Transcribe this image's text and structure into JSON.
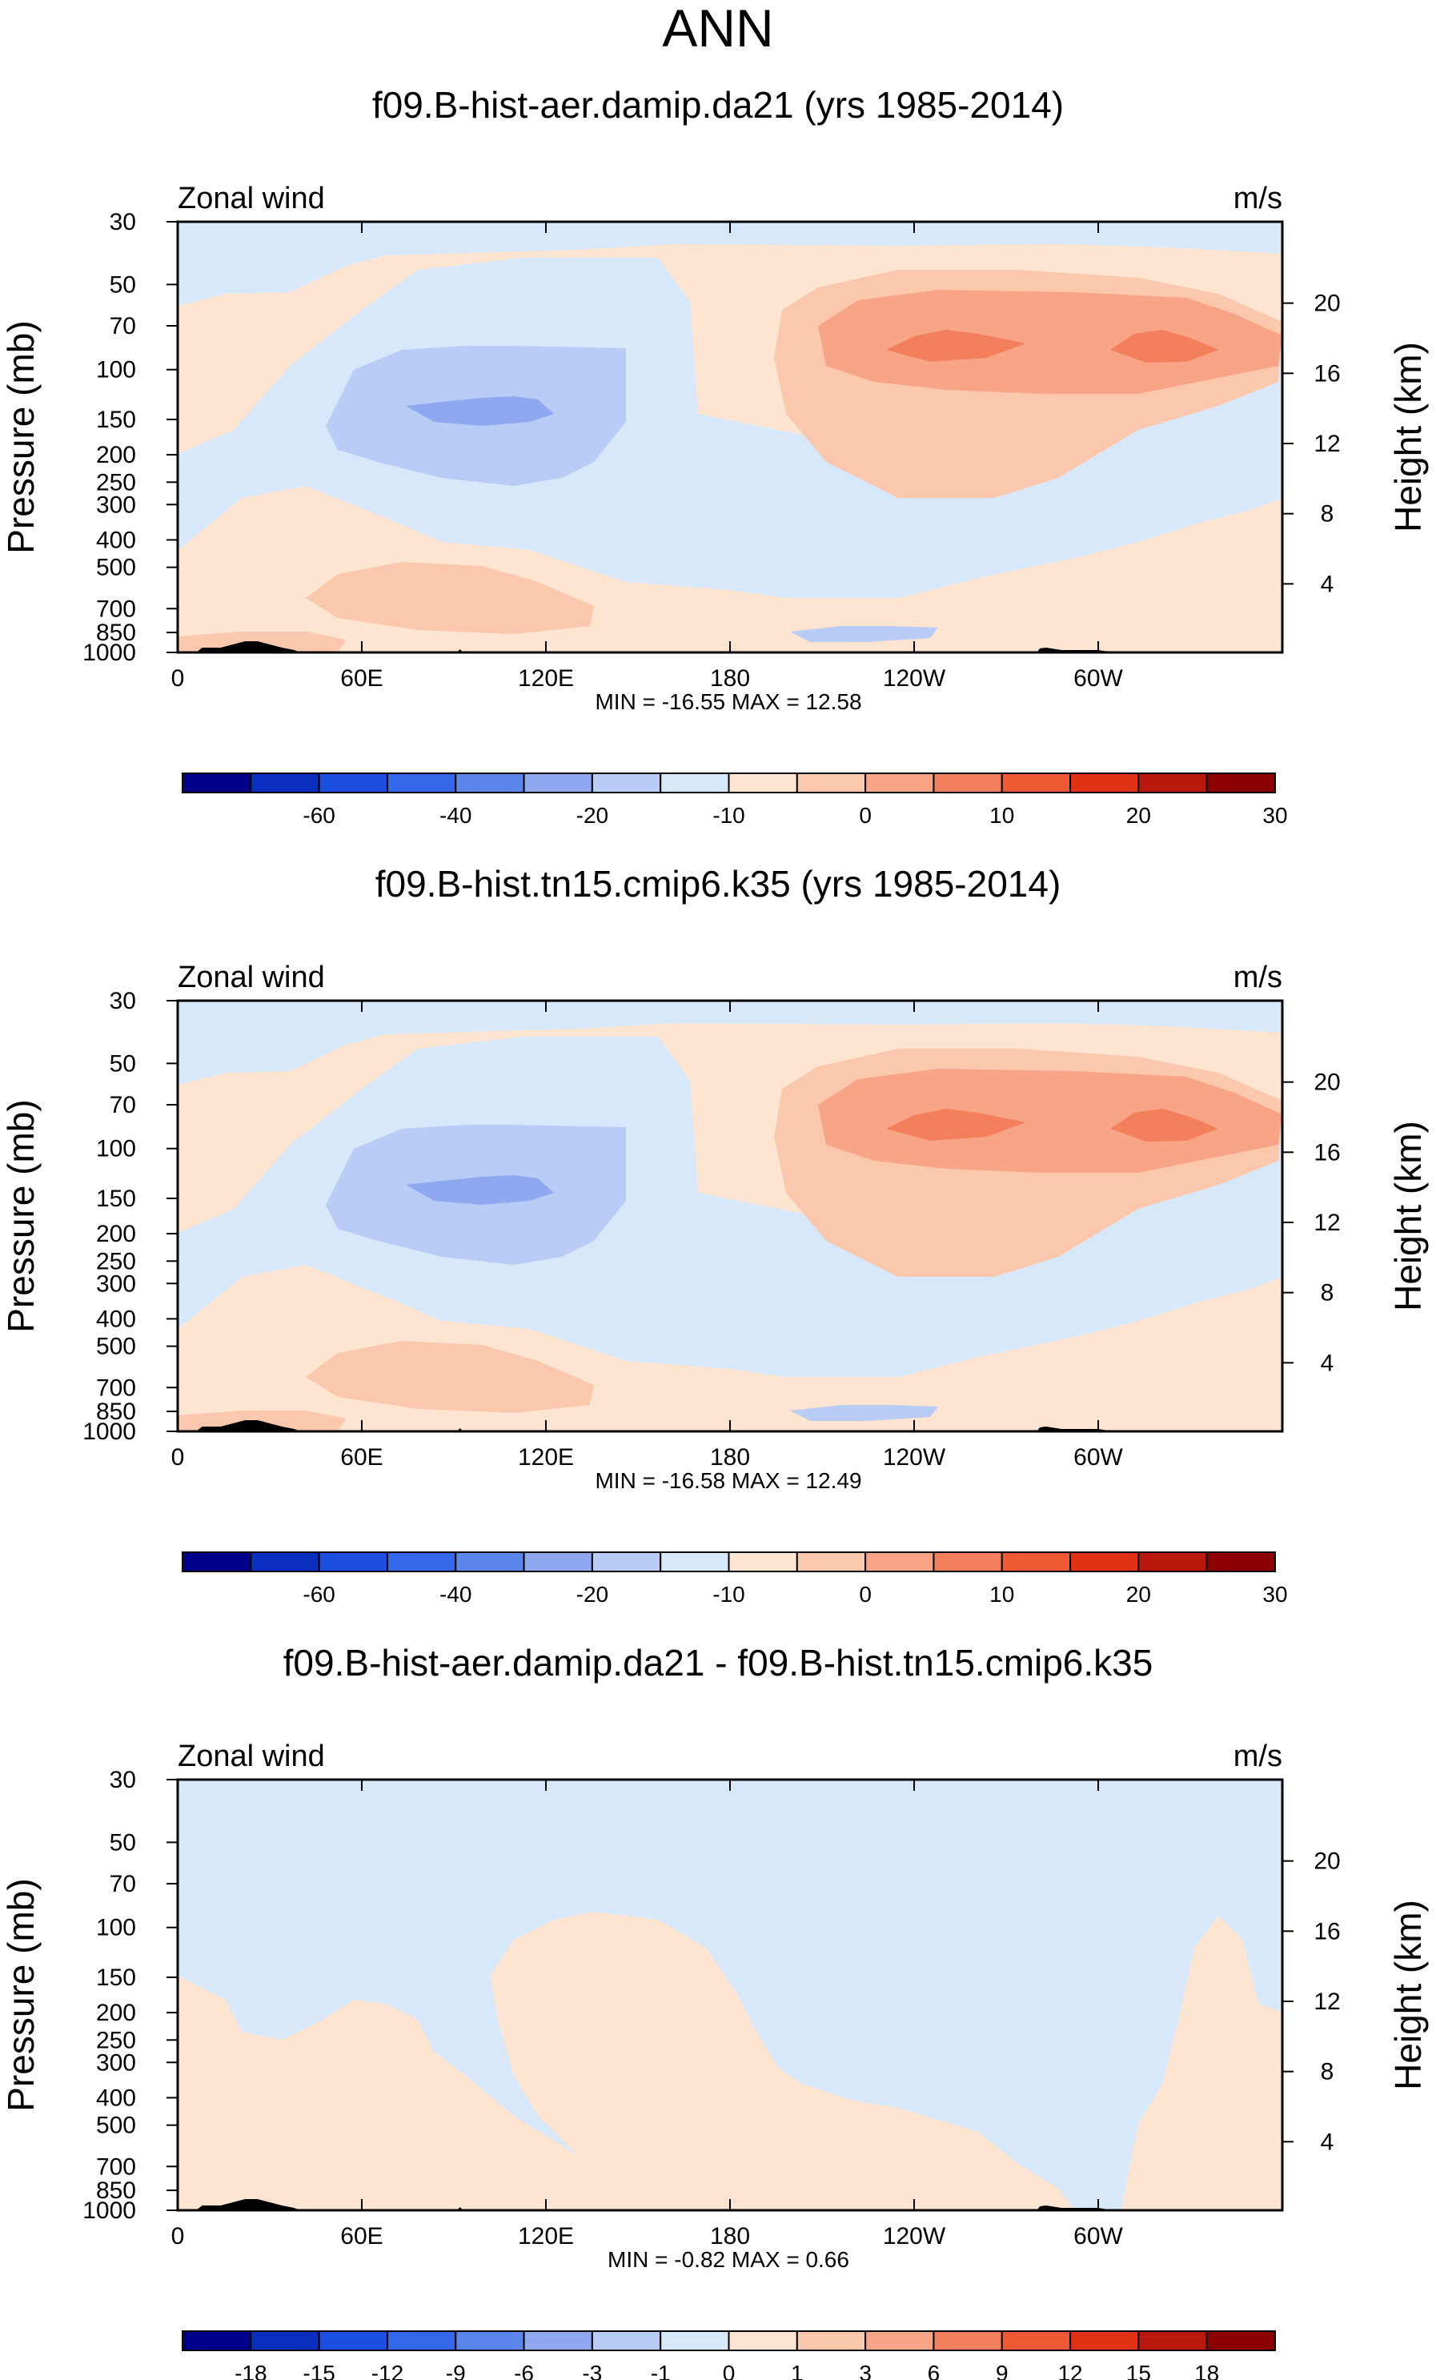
{
  "title": "ANN",
  "chart_data": [
    {
      "type": "heatmap",
      "title": "f09.B-hist-aer.damip.da21 (yrs 1985-2014)",
      "variable": "Zonal wind",
      "units": "m/s",
      "ylabel": "Pressure (mb)",
      "y2label": "Height (km)",
      "x_ticks": [
        "0",
        "60E",
        "120E",
        "180",
        "120W",
        "60W"
      ],
      "y_ticks": [
        "30",
        "50",
        "70",
        "100",
        "150",
        "200",
        "250",
        "300",
        "400",
        "500",
        "700",
        "850",
        "1000"
      ],
      "y2_ticks": [
        "20",
        "16",
        "12",
        "8",
        "4"
      ],
      "minmax": "MIN = -16.55  MAX =  12.58",
      "min": -16.55,
      "max": 12.58,
      "colorbar_labels": [
        "-60",
        "-40",
        "-20",
        "-10",
        "0",
        "10",
        "20",
        "30"
      ],
      "colorbar_colors": [
        "#00008b",
        "#0a2fbf",
        "#1c4fe0",
        "#3368ea",
        "#5b86ec",
        "#8ea9ef",
        "#b9ccf5",
        "#d8e8fb",
        "#fde5d2",
        "#fbc8ad",
        "#f8a587",
        "#f47f5c",
        "#ee5a33",
        "#e03316",
        "#b8190c",
        "#8b0000"
      ],
      "bg_color": "#d8e8fb"
    },
    {
      "type": "heatmap",
      "title": "f09.B-hist.tn15.cmip6.k35 (yrs 1985-2014)",
      "variable": "Zonal wind",
      "units": "m/s",
      "ylabel": "Pressure (mb)",
      "y2label": "Height (km)",
      "x_ticks": [
        "0",
        "60E",
        "120E",
        "180",
        "120W",
        "60W"
      ],
      "y_ticks": [
        "30",
        "50",
        "70",
        "100",
        "150",
        "200",
        "250",
        "300",
        "400",
        "500",
        "700",
        "850",
        "1000"
      ],
      "y2_ticks": [
        "20",
        "16",
        "12",
        "8",
        "4"
      ],
      "minmax": "MIN = -16.58  MAX =  12.49",
      "min": -16.58,
      "max": 12.49,
      "colorbar_labels": [
        "-60",
        "-40",
        "-20",
        "-10",
        "0",
        "10",
        "20",
        "30"
      ],
      "colorbar_colors": [
        "#00008b",
        "#0a2fbf",
        "#1c4fe0",
        "#3368ea",
        "#5b86ec",
        "#8ea9ef",
        "#b9ccf5",
        "#d8e8fb",
        "#fde5d2",
        "#fbc8ad",
        "#f8a587",
        "#f47f5c",
        "#ee5a33",
        "#e03316",
        "#b8190c",
        "#8b0000"
      ],
      "bg_color": "#d8e8fb"
    },
    {
      "type": "heatmap",
      "title": "f09.B-hist-aer.damip.da21 - f09.B-hist.tn15.cmip6.k35",
      "variable": "Zonal wind",
      "units": "m/s",
      "ylabel": "Pressure (mb)",
      "y2label": "Height (km)",
      "x_ticks": [
        "0",
        "60E",
        "120E",
        "180",
        "120W",
        "60W"
      ],
      "y_ticks": [
        "30",
        "50",
        "70",
        "100",
        "150",
        "200",
        "250",
        "300",
        "400",
        "500",
        "700",
        "850",
        "1000"
      ],
      "y2_ticks": [
        "20",
        "16",
        "12",
        "8",
        "4"
      ],
      "minmax": "MIN =  -0.82  MAX =   0.66",
      "min": -0.82,
      "max": 0.66,
      "colorbar_labels": [
        "-18",
        "-15",
        "-12",
        "-9",
        "-6",
        "-3",
        "-1",
        "0",
        "1",
        "3",
        "6",
        "9",
        "12",
        "15",
        "18"
      ],
      "colorbar_colors": [
        "#00008b",
        "#0a2fbf",
        "#1c4fe0",
        "#3368ea",
        "#5b86ec",
        "#8ea9ef",
        "#b9ccf5",
        "#d8e8fb",
        "#fde5d2",
        "#fbc8ad",
        "#f8a587",
        "#f47f5c",
        "#ee5a33",
        "#e03316",
        "#b8190c",
        "#8b0000"
      ],
      "bg_color": "#d8e8fb"
    }
  ]
}
